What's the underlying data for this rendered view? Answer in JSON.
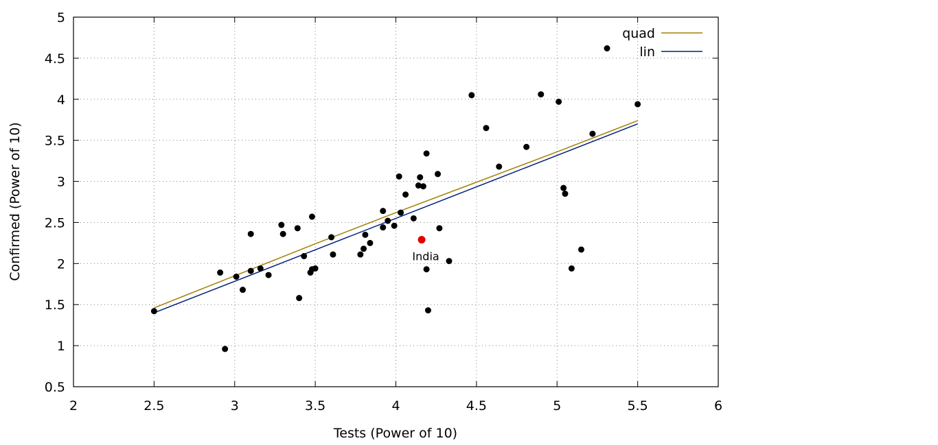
{
  "chart_data": {
    "type": "scatter",
    "xlabel": "Tests (Power of 10)",
    "ylabel": "Confirmed (Power of 10)",
    "xlim": [
      2,
      6
    ],
    "ylim": [
      0.5,
      5
    ],
    "x_ticks": [
      "2",
      "2.5",
      "3",
      "3.5",
      "4",
      "4.5",
      "5",
      "5.5",
      "6"
    ],
    "y_ticks": [
      "0.5",
      "1",
      "1.5",
      "2",
      "2.5",
      "3",
      "3.5",
      "4",
      "4.5",
      "5"
    ],
    "grid": true,
    "legend_position": "top-right",
    "points": [
      [
        2.5,
        1.42
      ],
      [
        2.91,
        1.89
      ],
      [
        2.94,
        0.96
      ],
      [
        3.01,
        1.84
      ],
      [
        3.05,
        1.68
      ],
      [
        3.1,
        1.91
      ],
      [
        3.1,
        2.36
      ],
      [
        3.16,
        1.94
      ],
      [
        3.21,
        1.86
      ],
      [
        3.29,
        2.47
      ],
      [
        3.3,
        2.36
      ],
      [
        3.39,
        2.43
      ],
      [
        3.4,
        1.58
      ],
      [
        3.43,
        2.09
      ],
      [
        3.47,
        1.89
      ],
      [
        3.48,
        2.57
      ],
      [
        3.48,
        1.93
      ],
      [
        3.5,
        1.94
      ],
      [
        3.6,
        2.32
      ],
      [
        3.61,
        2.11
      ],
      [
        3.78,
        2.11
      ],
      [
        3.8,
        2.18
      ],
      [
        3.81,
        2.35
      ],
      [
        3.84,
        2.25
      ],
      [
        3.92,
        2.44
      ],
      [
        3.92,
        2.64
      ],
      [
        3.95,
        2.52
      ],
      [
        3.99,
        2.46
      ],
      [
        4.02,
        3.06
      ],
      [
        4.03,
        2.62
      ],
      [
        4.06,
        2.84
      ],
      [
        4.11,
        2.55
      ],
      [
        4.14,
        2.95
      ],
      [
        4.15,
        3.05
      ],
      [
        4.17,
        2.94
      ],
      [
        4.19,
        3.34
      ],
      [
        4.19,
        1.93
      ],
      [
        4.2,
        1.43
      ],
      [
        4.26,
        3.09
      ],
      [
        4.27,
        2.43
      ],
      [
        4.33,
        2.03
      ],
      [
        4.47,
        4.05
      ],
      [
        4.56,
        3.65
      ],
      [
        4.64,
        3.18
      ],
      [
        4.81,
        3.42
      ],
      [
        4.9,
        4.06
      ],
      [
        5.01,
        3.97
      ],
      [
        5.04,
        2.92
      ],
      [
        5.05,
        2.85
      ],
      [
        5.09,
        1.94
      ],
      [
        5.15,
        2.17
      ],
      [
        5.22,
        3.58
      ],
      [
        5.31,
        4.62
      ],
      [
        5.5,
        3.94
      ]
    ],
    "highlight": {
      "label": "India",
      "x": 4.16,
      "y": 2.29,
      "color": "#e00000"
    },
    "series": [
      {
        "name": "quad",
        "color": "#a08000",
        "x": [
          2.5,
          3.0,
          3.5,
          4.0,
          4.5,
          5.0,
          5.5
        ],
        "y": [
          1.46,
          1.85,
          2.24,
          2.62,
          2.99,
          3.36,
          3.74
        ]
      },
      {
        "name": "lin",
        "color": "#002080",
        "x": [
          2.5,
          5.5
        ],
        "y": [
          1.4,
          3.7
        ]
      }
    ]
  }
}
